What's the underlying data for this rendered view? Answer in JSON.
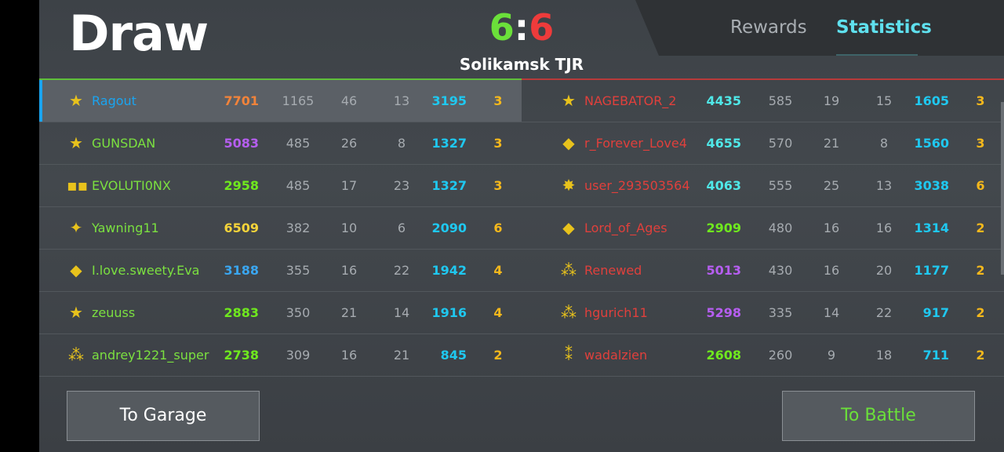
{
  "header": {
    "result": "Draw",
    "score_left": "6",
    "score_sep": ":",
    "score_right": "6",
    "map": "Solikamsk TJR"
  },
  "tabs": [
    {
      "label": "Rewards",
      "active": false
    },
    {
      "label": "Statistics",
      "active": true
    }
  ],
  "colors": {
    "team_left": "#5fbf3a",
    "team_right": "#b83a3a",
    "active_tab": "#5fe0ee",
    "player_self": "#1aa4f0",
    "name_left": "#7be040",
    "name_right": "#e0403c"
  },
  "team_left": [
    {
      "rank_icon": "star-icon",
      "name": "Ragout",
      "rating": "7701",
      "rating_color": "#f2833a",
      "v1": "1165",
      "v2": "46",
      "v3": "13",
      "points": "3195",
      "level": "3",
      "self": true
    },
    {
      "rank_icon": "star-bar-icon",
      "name": "GUNSDAN",
      "rating": "5083",
      "rating_color": "#b65ef0",
      "v1": "485",
      "v2": "26",
      "v3": "8",
      "points": "1327",
      "level": "3"
    },
    {
      "rank_icon": "three-squares-icon",
      "name": "EVOLUTI0NX",
      "rating": "2958",
      "rating_color": "#6fe81e",
      "v1": "485",
      "v2": "17",
      "v3": "23",
      "points": "1327",
      "level": "3"
    },
    {
      "rank_icon": "banner-stars-icon",
      "name": "Yawning11",
      "rating": "6509",
      "rating_color": "#f5d33a",
      "v1": "382",
      "v2": "10",
      "v3": "6",
      "points": "2090",
      "level": "6"
    },
    {
      "rank_icon": "diamond-banner-icon",
      "name": "I.love.sweety.Eva",
      "rating": "3188",
      "rating_color": "#3aa6f0",
      "v1": "355",
      "v2": "16",
      "v3": "22",
      "points": "1942",
      "level": "4"
    },
    {
      "rank_icon": "banner-star-icon",
      "name": "zeuuss",
      "rating": "2883",
      "rating_color": "#6fe81e",
      "v1": "350",
      "v2": "21",
      "v3": "14",
      "points": "1916",
      "level": "4"
    },
    {
      "rank_icon": "three-stars-icon",
      "name": "andrey1221_super",
      "rating": "2738",
      "rating_color": "#6fe81e",
      "v1": "309",
      "v2": "16",
      "v3": "21",
      "points": "845",
      "level": "2"
    }
  ],
  "team_right": [
    {
      "rank_icon": "star-icon",
      "name": "NAGEBATOR_2",
      "rating": "4435",
      "rating_color": "#4fe8e8",
      "v1": "585",
      "v2": "19",
      "v3": "15",
      "points": "1605",
      "level": "3"
    },
    {
      "rank_icon": "diamond-icon",
      "name": "r_Forever_Love4",
      "rating": "4655",
      "rating_color": "#4fe8e8",
      "v1": "570",
      "v2": "21",
      "v3": "8",
      "points": "1560",
      "level": "3"
    },
    {
      "rank_icon": "burst-banner-icon",
      "name": "user_293503564",
      "rating": "4063",
      "rating_color": "#4fe8e8",
      "v1": "555",
      "v2": "25",
      "v3": "13",
      "points": "3038",
      "level": "6"
    },
    {
      "rank_icon": "diamond-icon",
      "name": "Lord_of_Ages",
      "rating": "2909",
      "rating_color": "#6fe81e",
      "v1": "480",
      "v2": "16",
      "v3": "16",
      "points": "1314",
      "level": "2"
    },
    {
      "rank_icon": "three-stars-icon",
      "name": "Renewed",
      "rating": "5013",
      "rating_color": "#b65ef0",
      "v1": "430",
      "v2": "16",
      "v3": "20",
      "points": "1177",
      "level": "2"
    },
    {
      "rank_icon": "three-stars-icon",
      "name": "hgurich11",
      "rating": "5298",
      "rating_color": "#b65ef0",
      "v1": "335",
      "v2": "14",
      "v3": "22",
      "points": "917",
      "level": "2"
    },
    {
      "rank_icon": "two-stars-icon",
      "name": "wadalzien",
      "rating": "2608",
      "rating_color": "#6fe81e",
      "v1": "260",
      "v2": "9",
      "v3": "18",
      "points": "711",
      "level": "2"
    }
  ],
  "buttons": {
    "garage": "To Garage",
    "battle": "To Battle"
  }
}
